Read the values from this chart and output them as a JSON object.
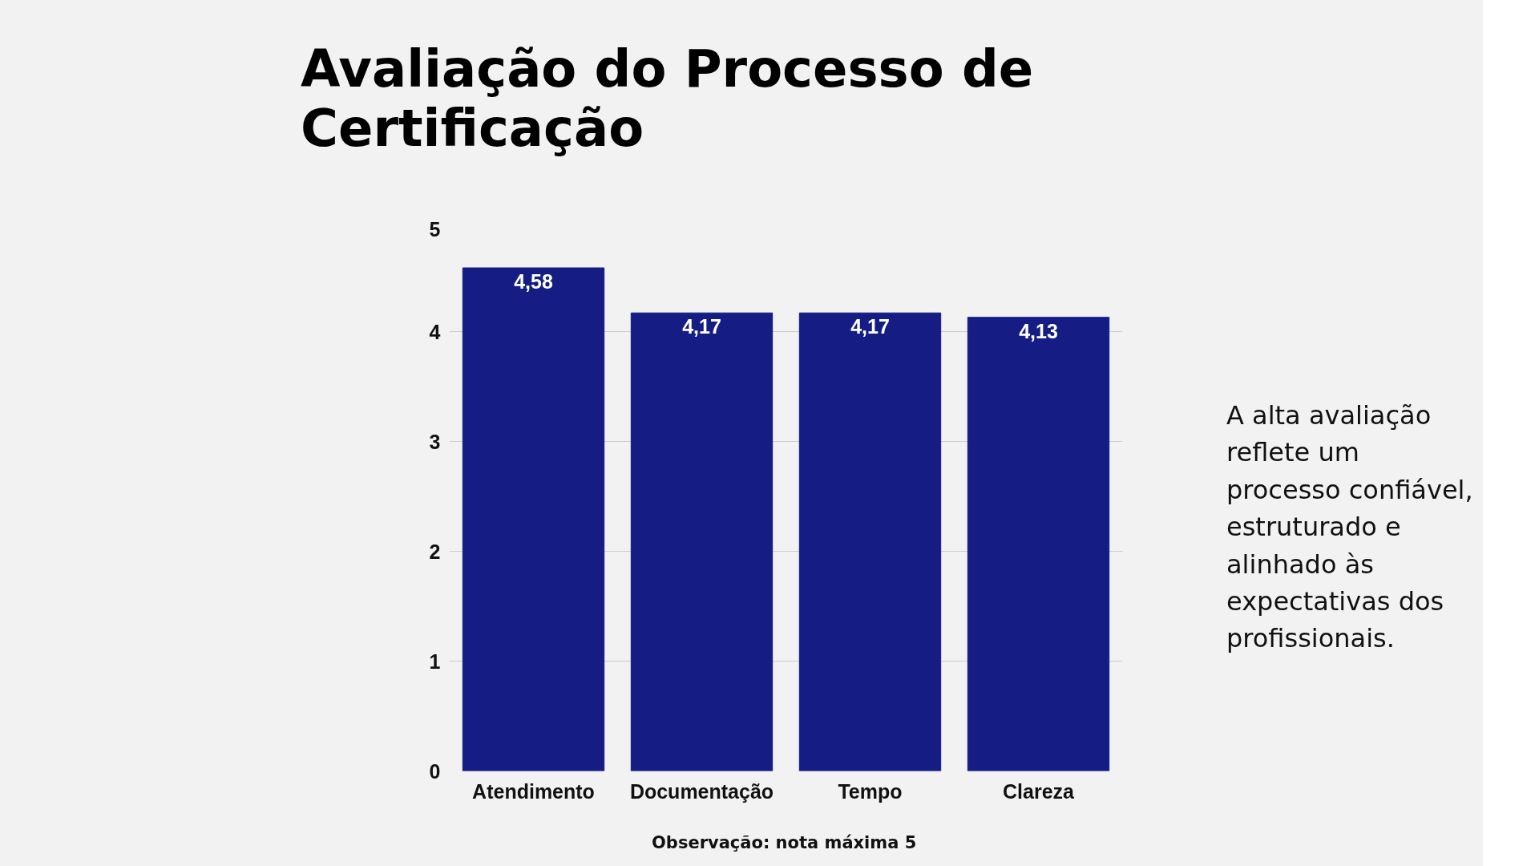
{
  "chart_data": {
    "type": "bar",
    "title": "Avaliação do Processo de Certificação",
    "categories": [
      "Atendimento",
      "Documentação",
      "Tempo",
      "Clareza"
    ],
    "values": [
      4.58,
      4.17,
      4.17,
      4.13
    ],
    "value_labels": [
      "4,58",
      "4,17",
      "4,17",
      "4,13"
    ],
    "color": "#151d84",
    "ylim": [
      0,
      5
    ],
    "yticks": [
      0,
      1,
      2,
      3,
      4,
      5
    ],
    "grid": "y",
    "annotations": [
      "Observação: nota máxima 5",
      "A alta avaliação reflete um processo confiável, estruturado e alinhado às expectativas dos profissionais."
    ]
  }
}
